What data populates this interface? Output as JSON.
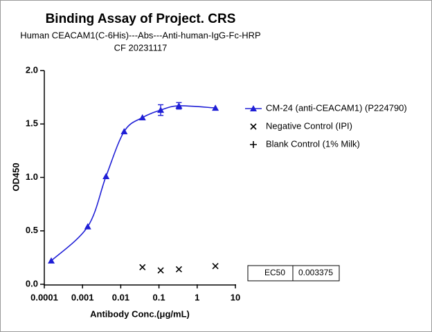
{
  "chart_data": {
    "type": "scatter",
    "title": "Binding Assay of Project. CRS",
    "subtitle": [
      "Human CEACAM1(C-6His)---Abs---Anti-human-IgG-Fc-HRP",
      "CF 20231117"
    ],
    "x_label": "Antibody Conc.(μg/mL)",
    "y_label": "OD450",
    "x_scale": "log",
    "xlim": [
      0.0001,
      10
    ],
    "xticks": [
      0.0001,
      0.001,
      0.01,
      0.1,
      1,
      10
    ],
    "ylim": [
      0,
      2
    ],
    "yticks": [
      {
        "value": 0,
        "label": "0.0"
      },
      0.5,
      {
        "value": 1,
        "label": "1.0"
      },
      1.5,
      {
        "value": 2,
        "label": "2.0"
      }
    ],
    "series": [
      {
        "name": "CM-24 (anti-CEACAM1) (P224790)",
        "color": "#1f1fd6",
        "marker": "triangle",
        "fit_line": true,
        "x": [
          0.000152,
          0.00137,
          0.00412,
          0.0123,
          0.037,
          0.111,
          0.333,
          3
        ],
        "values": [
          0.22,
          0.54,
          1.01,
          1.43,
          1.56,
          1.63,
          1.67,
          1.65
        ],
        "errors": [
          null,
          null,
          null,
          null,
          null,
          0.05,
          0.03,
          null
        ]
      },
      {
        "name": "Negative Control (IPI)",
        "color": "#000000",
        "marker": "x",
        "fit_line": false,
        "x": [
          0.037,
          0.111,
          0.333,
          3
        ],
        "values": [
          0.16,
          0.13,
          0.14,
          0.17
        ]
      },
      {
        "name": "Blank Control (1% Milk)",
        "color": "#000000",
        "marker": "plus",
        "fit_line": false,
        "x": [],
        "values": []
      }
    ],
    "table": {
      "rows": [
        [
          "EC50",
          "0.003375"
        ]
      ]
    }
  }
}
